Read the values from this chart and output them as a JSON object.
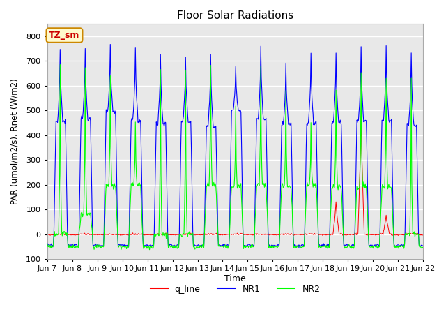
{
  "title": "Floor Solar Radiations",
  "ylabel": "PAR (umol/m2/s), Rnet (W/m2)",
  "xlabel": "Time",
  "ylim": [
    -100,
    850
  ],
  "background_color": "white",
  "plot_bg_color": "#e8e8e8",
  "grid_color": "white",
  "label_box_text": "TZ_sm",
  "label_box_facecolor": "#fffacd",
  "label_box_edgecolor": "#cc8800",
  "label_text_color": "#cc0000",
  "tick_labels": [
    "Jun 7",
    "Jun 8",
    "Jun 9",
    "Jun 10",
    "Jun 11",
    "Jun 12",
    "Jun 13",
    "Jun 14",
    "Jun 15",
    "Jun 16",
    "Jun 17",
    "Jun 18",
    "Jun 19",
    "Jun 20",
    "Jun 21",
    "Jun 22"
  ],
  "legend_labels": [
    "q_line",
    "NR1",
    "NR2"
  ],
  "days": 15,
  "hours_per_day": 48,
  "NR1_peaks": [
    750,
    750,
    765,
    760,
    738,
    720,
    730,
    682,
    760,
    690,
    730,
    730,
    750,
    750,
    733
  ],
  "NR1_peaks2": [
    455,
    467,
    495,
    460,
    445,
    455,
    433,
    500,
    463,
    445,
    450,
    450,
    460,
    460,
    440
  ],
  "NR2_peaks": [
    700,
    678,
    640,
    460,
    673,
    670,
    680,
    520,
    683,
    578,
    450,
    580,
    655,
    635,
    640
  ],
  "NR2_peaks2": [
    0,
    80,
    195,
    200,
    0,
    0,
    195,
    190,
    200,
    190,
    200,
    190,
    195,
    190,
    0
  ],
  "q_peaks": [
    0,
    0,
    0,
    0,
    0,
    0,
    0,
    0,
    0,
    0,
    0,
    130,
    480,
    80,
    0
  ],
  "night_NR1": -45,
  "night_NR2": -50,
  "night_q": -2
}
